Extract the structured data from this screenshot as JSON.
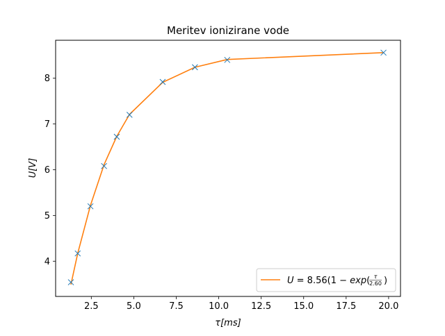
{
  "chart_data": {
    "type": "line",
    "title": "Meritev ionizirane vode",
    "xlabel": "τ[ms]",
    "ylabel": "U[V]",
    "xlim": [
      0.4,
      20.7
    ],
    "ylim": [
      3.23,
      8.83
    ],
    "grid": false,
    "legend_position": "lower-right",
    "x_ticks": [
      2.5,
      5.0,
      7.5,
      10.0,
      12.5,
      15.0,
      17.5,
      20.0
    ],
    "x_tick_labels": [
      "2.5",
      "5.0",
      "7.5",
      "10.0",
      "12.5",
      "15.0",
      "17.5",
      "20.0"
    ],
    "y_ticks": [
      4,
      5,
      6,
      7,
      8
    ],
    "y_tick_labels": [
      "4",
      "5",
      "6",
      "7",
      "8"
    ],
    "series": [
      {
        "kind": "scatter",
        "marker": "x",
        "color": "#1f77b4",
        "x": [
          1.3,
          1.7,
          2.45,
          3.25,
          4.0,
          4.75,
          6.7,
          8.6,
          10.5,
          19.7
        ],
        "y": [
          3.54,
          4.17,
          5.2,
          6.08,
          6.72,
          7.2,
          7.92,
          8.24,
          8.4,
          8.56
        ]
      },
      {
        "kind": "line",
        "name": "U = 8.56(1 − exp(τ/2.60))",
        "color": "#ff7f0e",
        "x": [
          1.3,
          1.7,
          2.45,
          3.25,
          4.0,
          4.75,
          6.7,
          8.6,
          10.5,
          19.7
        ],
        "y": [
          3.49,
          4.17,
          5.22,
          6.11,
          6.73,
          7.21,
          7.91,
          8.24,
          8.41,
          8.56
        ]
      }
    ],
    "legend": {
      "prefix": "U",
      "equals": " = 8.56(1 − ",
      "func": "exp",
      "open": "(",
      "frac_num": "τ",
      "frac_den": "2.60",
      "close": ")"
    }
  }
}
